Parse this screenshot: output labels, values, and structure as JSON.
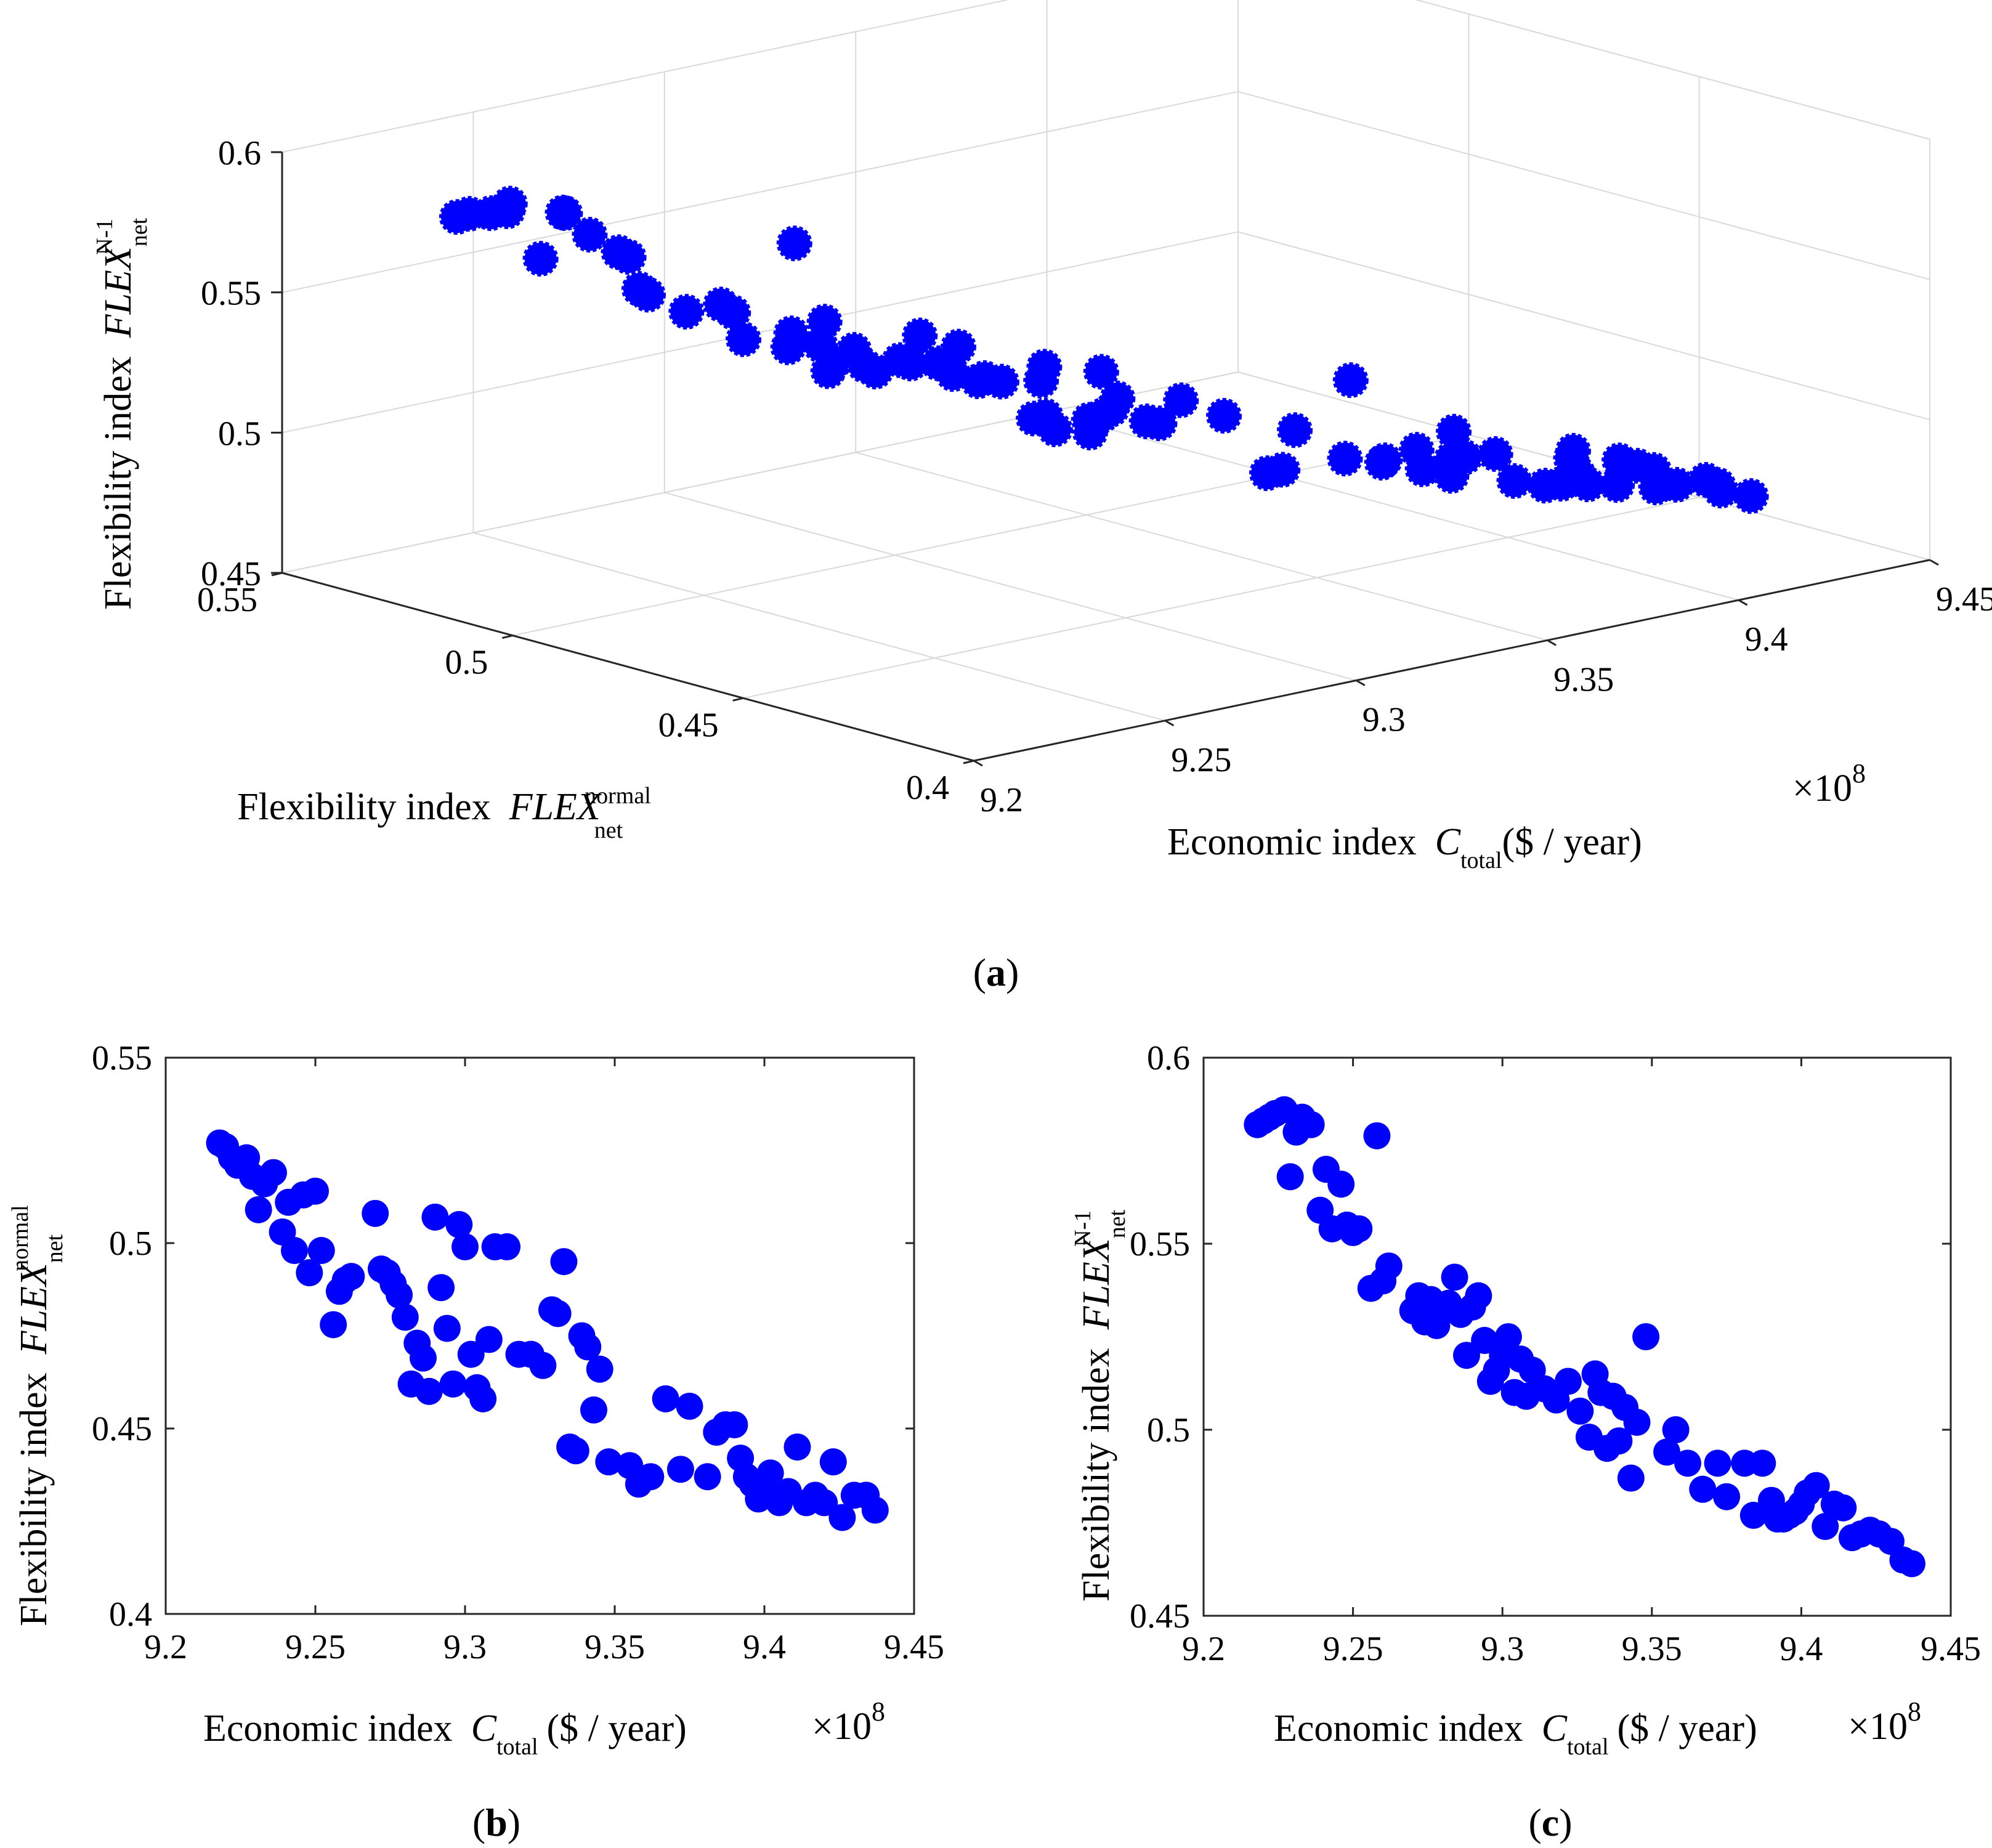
{
  "chart_data": [
    {
      "id": "a",
      "type": "scatter3d",
      "panel_label": "a",
      "xlabel": {
        "text": "Economic index",
        "var": "C",
        "sub": "total",
        "unit": "($ / year)"
      },
      "ylabel": {
        "text": "Flexibility index",
        "var": "FLEX",
        "sub": "net",
        "sup": "normal"
      },
      "zlabel": {
        "text": "Flexibility index",
        "var": "FLEX",
        "sub": "net",
        "sup": "N-1"
      },
      "x_multiplier": "×10",
      "x_multiplier_exp": "8",
      "xlim": [
        9.2,
        9.45
      ],
      "ylim": [
        0.4,
        0.55
      ],
      "zlim": [
        0.45,
        0.6
      ],
      "x_ticks": [
        "9.2",
        "9.25",
        "9.3",
        "9.35",
        "9.4",
        "9.45"
      ],
      "y_ticks": [
        "0.4",
        "0.45",
        "0.5",
        "0.55"
      ],
      "z_ticks": [
        "0.45",
        "0.5",
        "0.55",
        "0.6"
      ],
      "marker_color": "#0000ff",
      "points": "shared (x = C_total/1e8, y = FLEX_normal, z = FLEX_N-1)"
    },
    {
      "id": "b",
      "type": "scatter",
      "panel_label": "b",
      "xlabel": {
        "text": "Economic index",
        "var": "C",
        "sub": "total",
        "unit": "($ / year)"
      },
      "ylabel": {
        "text": "Flexibility index",
        "var": "FLEX",
        "sub": "net",
        "sup": "normal"
      },
      "x_multiplier": "×10",
      "x_multiplier_exp": "8",
      "xlim": [
        9.2,
        9.45
      ],
      "ylim": [
        0.4,
        0.55
      ],
      "x_ticks": [
        "9.2",
        "9.25",
        "9.3",
        "9.35",
        "9.4",
        "9.45"
      ],
      "y_ticks": [
        "0.4",
        "0.45",
        "0.5",
        "0.55"
      ],
      "marker_color": "#0000ff"
    },
    {
      "id": "c",
      "type": "scatter",
      "panel_label": "c",
      "xlabel": {
        "text": "Economic index",
        "var": "C",
        "sub": "total",
        "unit": "($ / year)"
      },
      "ylabel": {
        "text": "Flexibility index",
        "var": "FLEX",
        "sub": "net",
        "sup": "N-1"
      },
      "x_multiplier": "×10",
      "x_multiplier_exp": "8",
      "xlim": [
        9.2,
        9.45
      ],
      "ylim": [
        0.45,
        0.6
      ],
      "x_ticks": [
        "9.2",
        "9.25",
        "9.3",
        "9.35",
        "9.4",
        "9.45"
      ],
      "y_ticks": [
        "0.45",
        "0.5",
        "0.55",
        "0.6"
      ],
      "marker_color": "#0000ff"
    }
  ],
  "points_x": [
    9.218,
    9.22,
    9.222,
    9.224,
    9.227,
    9.229,
    9.231,
    9.233,
    9.236,
    9.239,
    9.241,
    9.243,
    9.246,
    9.248,
    9.25,
    9.252,
    9.256,
    9.258,
    9.26,
    9.262,
    9.27,
    9.272,
    9.274,
    9.276,
    9.278,
    9.28,
    9.282,
    9.284,
    9.286,
    9.288,
    9.29,
    9.292,
    9.294,
    9.296,
    9.298,
    9.3,
    9.302,
    9.304,
    9.306,
    9.308,
    9.31,
    9.314,
    9.318,
    9.322,
    9.326,
    9.329,
    9.331,
    9.333,
    9.335,
    9.337,
    9.339,
    9.341,
    9.343,
    9.345,
    9.348,
    9.355,
    9.358,
    9.362,
    9.367,
    9.372,
    9.375,
    9.381,
    9.384,
    9.387,
    9.39,
    9.392,
    9.394,
    9.396,
    9.398,
    9.4,
    9.402,
    9.405,
    9.408,
    9.411,
    9.414,
    9.417,
    9.42,
    9.423,
    9.426,
    9.43,
    9.434,
    9.437
  ],
  "points_y": [
    0.527,
    0.526,
    0.523,
    0.521,
    0.523,
    0.518,
    0.509,
    0.516,
    0.519,
    0.503,
    0.511,
    0.498,
    0.513,
    0.492,
    0.514,
    0.498,
    0.478,
    0.487,
    0.49,
    0.491,
    0.508,
    0.493,
    0.492,
    0.489,
    0.486,
    0.48,
    0.462,
    0.473,
    0.469,
    0.46,
    0.507,
    0.488,
    0.477,
    0.462,
    0.505,
    0.499,
    0.47,
    0.461,
    0.458,
    0.474,
    0.499,
    0.499,
    0.47,
    0.47,
    0.467,
    0.482,
    0.481,
    0.495,
    0.445,
    0.444,
    0.475,
    0.472,
    0.455,
    0.466,
    0.441,
    0.44,
    0.435,
    0.437,
    0.458,
    0.439,
    0.456,
    0.437,
    0.449,
    0.451,
    0.451,
    0.442,
    0.437,
    0.435,
    0.431,
    0.435,
    0.438,
    0.43,
    0.433,
    0.445,
    0.43,
    0.432,
    0.43,
    0.441,
    0.426,
    0.432,
    0.432,
    0.428
  ],
  "points_z": [
    0.582,
    0.583,
    0.584,
    0.585,
    0.586,
    0.568,
    0.58,
    0.584,
    0.582,
    0.559,
    0.57,
    0.554,
    0.566,
    0.555,
    0.553,
    0.554,
    0.538,
    0.579,
    0.54,
    0.544,
    0.532,
    0.536,
    0.529,
    0.535,
    0.528,
    0.533,
    0.534,
    0.541,
    0.531,
    0.52,
    0.533,
    0.536,
    0.524,
    0.513,
    0.516,
    0.52,
    0.525,
    0.51,
    0.519,
    0.509,
    0.516,
    0.511,
    0.508,
    0.513,
    0.505,
    0.498,
    0.515,
    0.51,
    0.495,
    0.509,
    0.497,
    0.506,
    0.487,
    0.502,
    0.525,
    0.494,
    0.5,
    0.491,
    0.484,
    0.491,
    0.482,
    0.491,
    0.477,
    0.491,
    0.481,
    0.476,
    0.476,
    0.477,
    0.478,
    0.48,
    0.483,
    0.485,
    0.474,
    0.48,
    0.479,
    0.471,
    0.472,
    0.473,
    0.472,
    0.47,
    0.465,
    0.464
  ]
}
